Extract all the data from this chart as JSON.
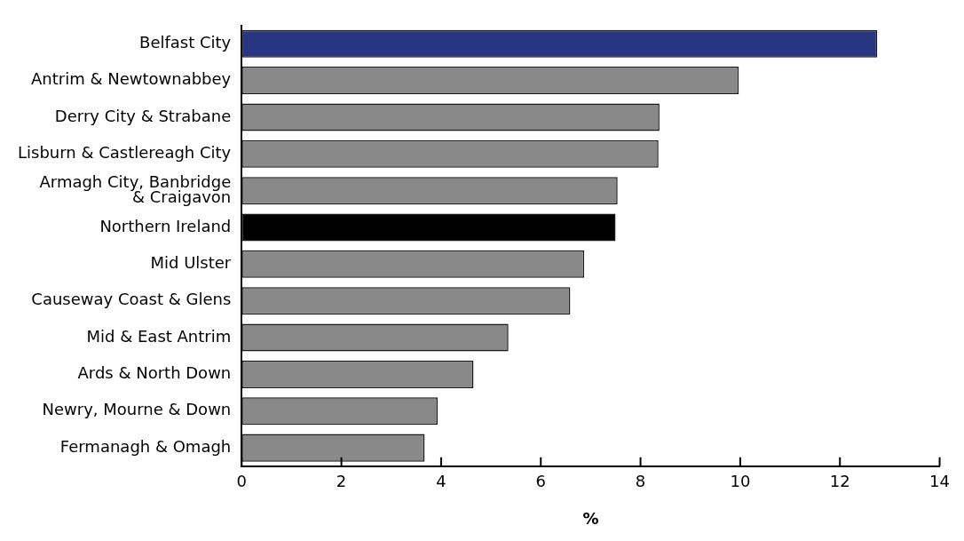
{
  "chart_data": {
    "type": "bar",
    "orientation": "horizontal",
    "xlabel": "%",
    "categories": [
      "Belfast City",
      "Antrim & Newtownabbey",
      "Derry City & Strabane",
      "Lisburn & Castlereagh City",
      "Armagh City, Banbridge\n& Craigavon",
      "Northern Ireland",
      "Mid Ulster",
      "Causeway Coast & Glens",
      "Mid & East Antrim",
      "Ards & North Down",
      "Newry, Mourne & Down",
      "Fermanagh & Omagh"
    ],
    "values": [
      12.75,
      9.97,
      8.38,
      8.36,
      7.54,
      7.5,
      6.87,
      6.59,
      5.35,
      4.65,
      3.93,
      3.67
    ],
    "colors": [
      "#283580",
      "#898989",
      "#898989",
      "#898989",
      "#898989",
      "#000000",
      "#898989",
      "#898989",
      "#898989",
      "#898989",
      "#898989",
      "#898989"
    ],
    "xlim": [
      0,
      14
    ],
    "xticks": [
      0,
      2,
      4,
      6,
      8,
      10,
      12,
      14
    ],
    "grid": false,
    "legend": false
  }
}
